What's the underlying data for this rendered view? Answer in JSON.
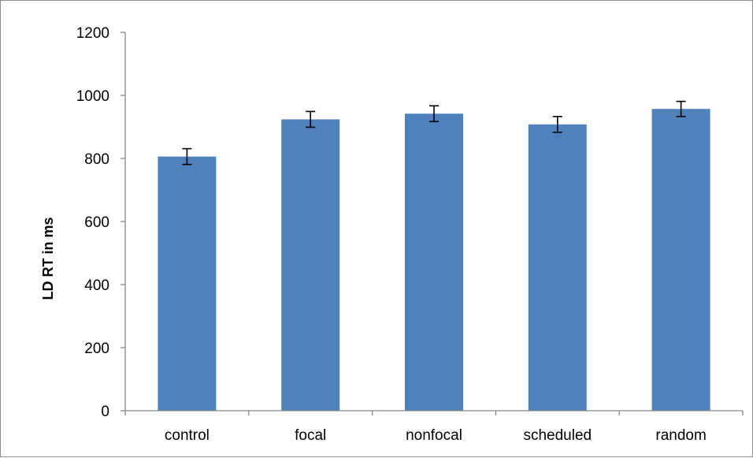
{
  "chart_data": {
    "type": "bar",
    "title": "",
    "xlabel": "",
    "ylabel": "LD RT in ms",
    "categories": [
      "control",
      "focal",
      "nonfocal",
      "scheduled",
      "random"
    ],
    "values": [
      806,
      924,
      942,
      908,
      957
    ],
    "error": [
      25,
      25,
      25,
      25,
      24
    ],
    "ylim": [
      0,
      1200
    ],
    "yticks": [
      0,
      200,
      400,
      600,
      800,
      1000,
      1200
    ],
    "grid": false,
    "legend": "none",
    "bar_color": "#4F81BD",
    "error_color": "#000000",
    "axis_color": "#868686"
  }
}
